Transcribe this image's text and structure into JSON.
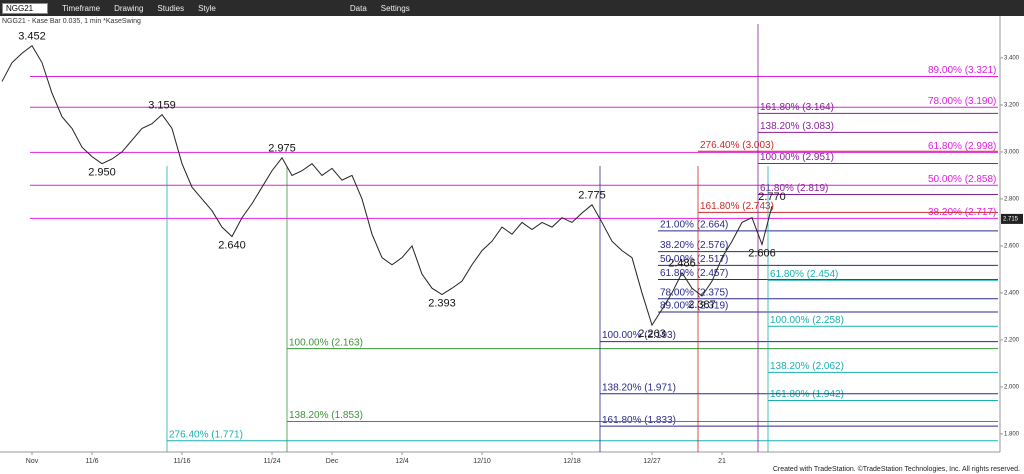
{
  "toolbar": {
    "symbol": "NGG21",
    "items": [
      "Timeframe",
      "Drawing",
      "Studies",
      "Style",
      "Data",
      "Settings"
    ]
  },
  "footer": "Created with TradeStation. ©TradeStation Technologies, Inc. All rights reserved.",
  "chart_data": {
    "type": "line",
    "title": "NGG21 - Kase Bar 0.035, 1 min *KaseSwing",
    "categories": [
      null,
      null,
      null,
      "Nov",
      null,
      null,
      null,
      null,
      null,
      "11/6",
      null,
      null,
      null,
      null,
      null,
      null,
      null,
      null,
      "11/16",
      null,
      null,
      null,
      null,
      null,
      null,
      null,
      null,
      "11/24",
      null,
      null,
      null,
      null,
      null,
      "Dec",
      null,
      null,
      null,
      null,
      null,
      null,
      "12/4",
      null,
      null,
      null,
      null,
      null,
      null,
      null,
      "12/10",
      null,
      null,
      null,
      null,
      null,
      null,
      null,
      null,
      "12/18",
      null,
      null,
      null,
      null,
      null,
      null,
      null,
      "12/27",
      null,
      null,
      null,
      null,
      null,
      null,
      "21",
      null,
      null,
      null,
      null,
      null
    ],
    "series": [
      {
        "name": "NGG21",
        "color": "#222222",
        "values": [
          3.3,
          3.38,
          3.42,
          3.452,
          3.38,
          3.25,
          3.15,
          3.1,
          3.02,
          2.98,
          2.95,
          2.97,
          3.0,
          3.05,
          3.1,
          3.12,
          3.159,
          3.1,
          2.95,
          2.85,
          2.8,
          2.75,
          2.68,
          2.64,
          2.72,
          2.78,
          2.85,
          2.92,
          2.975,
          2.9,
          2.92,
          2.95,
          2.9,
          2.93,
          2.88,
          2.9,
          2.8,
          2.65,
          2.55,
          2.52,
          2.55,
          2.6,
          2.48,
          2.42,
          2.393,
          2.42,
          2.45,
          2.52,
          2.58,
          2.62,
          2.68,
          2.65,
          2.7,
          2.67,
          2.7,
          2.68,
          2.72,
          2.7,
          2.74,
          2.775,
          2.7,
          2.62,
          2.58,
          2.55,
          2.4,
          2.263,
          2.33,
          2.4,
          2.486,
          2.42,
          2.387,
          2.45,
          2.55,
          2.62,
          2.7,
          2.72,
          2.606,
          2.77
        ],
        "value_labels": [
          null,
          null,
          null,
          "3.452",
          null,
          null,
          null,
          null,
          null,
          null,
          "2.950",
          null,
          null,
          null,
          null,
          null,
          "3.159",
          null,
          null,
          null,
          null,
          null,
          null,
          "2.640",
          null,
          null,
          null,
          null,
          "2.975",
          null,
          null,
          null,
          null,
          null,
          null,
          null,
          null,
          null,
          null,
          null,
          null,
          null,
          null,
          null,
          "2.393",
          null,
          null,
          null,
          null,
          null,
          null,
          null,
          null,
          null,
          null,
          null,
          null,
          null,
          null,
          "2.775",
          null,
          null,
          null,
          null,
          null,
          "2.263",
          null,
          null,
          "2.486",
          null,
          "2.387",
          null,
          null,
          null,
          null,
          null,
          "2.606",
          "2.770"
        ]
      }
    ],
    "ylim": [
      1.723,
      3.553
    ],
    "yticks": [
      {
        "value": 1.8,
        "label": "1.800"
      },
      {
        "value": 2.0,
        "label": "2.000"
      },
      {
        "value": 2.2,
        "label": "2.200"
      },
      {
        "value": 2.4,
        "label": "2.400"
      },
      {
        "value": 2.6,
        "label": "2.600"
      },
      {
        "value": 2.8,
        "label": "2.800"
      },
      {
        "value": 3.0,
        "label": "3.000"
      },
      {
        "value": 3.2,
        "label": "3.200"
      },
      {
        "value": 3.4,
        "label": "3.400"
      }
    ],
    "last_price": {
      "value": 2.715,
      "label": "2.715"
    },
    "annotations": [
      {
        "value": 3.321,
        "label": "89.00% (3.321)",
        "color": "#e020e0"
      },
      {
        "value": 3.19,
        "label": "78.00% (3.190)",
        "color": "#e020e0"
      },
      {
        "value": 2.998,
        "label": "61.80% (2.998)",
        "color": "#e020e0"
      },
      {
        "value": 2.858,
        "label": "50.00% (2.858)",
        "color": "#e020e0"
      },
      {
        "value": 2.717,
        "label": "38.20% (2.717)",
        "color": "#e020e0"
      },
      {
        "value": 3.003,
        "label": "276.40% (3.003)",
        "color": "#d02828"
      },
      {
        "value": 2.743,
        "label": "161.80% (2.743)",
        "color": "#d02828"
      },
      {
        "value": 3.164,
        "label": "161.80% (3.164)",
        "color": "#8a1f9a"
      },
      {
        "value": 3.083,
        "label": "138.20% (3.083)",
        "color": "#8a1f9a"
      },
      {
        "value": 2.951,
        "label": "100.00% (2.951)",
        "color": "#8a1f9a"
      },
      {
        "value": 2.819,
        "label": "61.80% (2.819)",
        "color": "#8a1f9a"
      },
      {
        "value": 2.664,
        "label": "21.00% (2.664)",
        "color": "#2a2a8a"
      },
      {
        "value": 2.576,
        "label": "38.20% (2.576)",
        "color": "#2a2a8a"
      },
      {
        "value": 2.517,
        "label": "50.00% (2.517)",
        "color": "#2a2a8a"
      },
      {
        "value": 2.457,
        "label": "61.80% (2.457)",
        "color": "#2a2a8a"
      },
      {
        "value": 2.375,
        "label": "78.00% (2.375)",
        "color": "#2a2a8a"
      },
      {
        "value": 2.319,
        "label": "89.00% (2.319)",
        "color": "#2a2a8a"
      },
      {
        "value": 2.454,
        "label": "61.80% (2.454)",
        "color": "#1ab0b0"
      },
      {
        "value": 2.258,
        "label": "100.00% (2.258)",
        "color": "#1ab0b0"
      },
      {
        "value": 2.062,
        "label": "138.20% (2.062)",
        "color": "#1ab0b0"
      },
      {
        "value": 1.942,
        "label": "161.80% (1.942)",
        "color": "#1ab0b0"
      },
      {
        "value": 2.193,
        "label": "100.00% (2.193)",
        "color": "#2a2a8a"
      },
      {
        "value": 1.971,
        "label": "138.20% (1.971)",
        "color": "#2a2a8a"
      },
      {
        "value": 1.833,
        "label": "161.80% (1.833)",
        "color": "#2a2a8a"
      },
      {
        "value": 2.163,
        "label": "100.00% (2.163)",
        "color": "#3a963a"
      },
      {
        "value": 1.853,
        "label": "138.20% (1.853)",
        "color": "#3a963a"
      },
      {
        "value": 1.771,
        "label": "276.40% (1.771)",
        "color": "#1ab0b0"
      }
    ]
  }
}
